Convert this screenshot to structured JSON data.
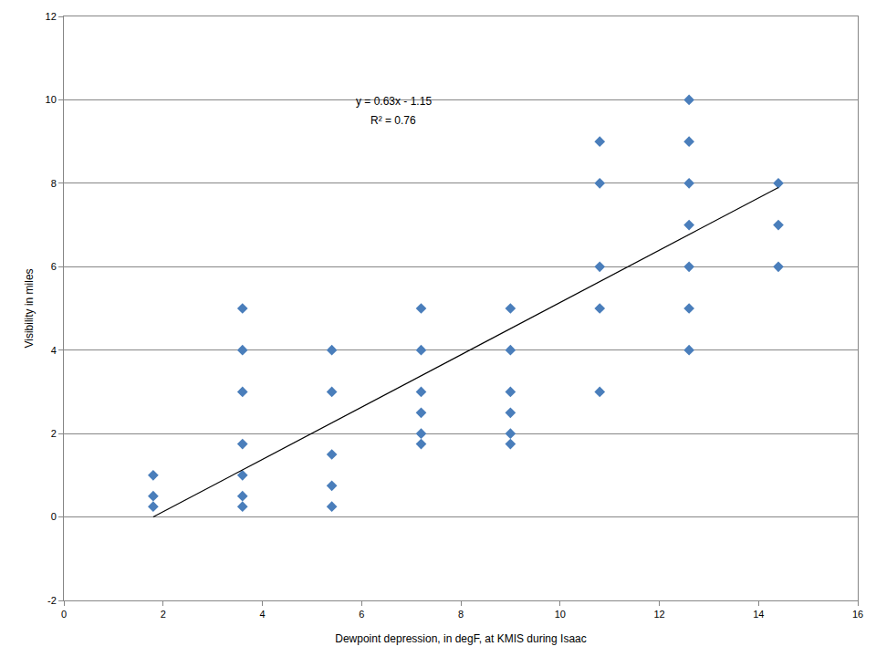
{
  "chart_data": {
    "type": "scatter",
    "x_label": "Dewpoint depression, in degF, at KMIS during Isaac",
    "y_label": "Visibility in miles",
    "annotations": [
      "y = 0.63x - 1.15",
      "R² = 0.76"
    ],
    "xlim": [
      0,
      16
    ],
    "xticks": [
      0,
      2,
      4,
      6,
      8,
      10,
      12,
      14,
      16
    ],
    "ylim": [
      -2,
      12
    ],
    "yticks": [
      -2,
      0,
      2,
      4,
      6,
      8,
      10,
      12
    ],
    "grid": true,
    "series": [
      {
        "type": "scatter",
        "color": "#4a7ebb",
        "marker": "diamond",
        "x": [
          1.8,
          1.8,
          1.8,
          3.6,
          3.6,
          3.6,
          3.6,
          3.6,
          3.6,
          3.6,
          5.4,
          5.4,
          5.4,
          5.4,
          5.4,
          7.2,
          7.2,
          7.2,
          7.2,
          7.2,
          7.2,
          9.0,
          9.0,
          9.0,
          9.0,
          9.0,
          9.0,
          10.8,
          10.8,
          10.8,
          10.8,
          10.8,
          12.6,
          12.6,
          12.6,
          12.6,
          12.6,
          12.6,
          12.6,
          14.4,
          14.4,
          14.4
        ],
        "values": [
          1,
          0.5,
          0.25,
          5,
          4,
          3,
          1.75,
          1,
          0.5,
          0.25,
          4,
          3,
          1.5,
          0.75,
          0.25,
          5,
          4,
          3,
          2.5,
          2,
          1.75,
          5,
          4,
          3,
          2.5,
          2,
          1.75,
          9,
          8,
          6,
          5,
          3,
          10,
          9,
          8,
          7,
          6,
          5,
          4,
          8,
          7,
          6
        ]
      },
      {
        "type": "line",
        "color": "#000000",
        "line_style": "solid",
        "x": [
          1.8,
          14.4
        ],
        "values": [
          0,
          7.9
        ]
      }
    ]
  }
}
